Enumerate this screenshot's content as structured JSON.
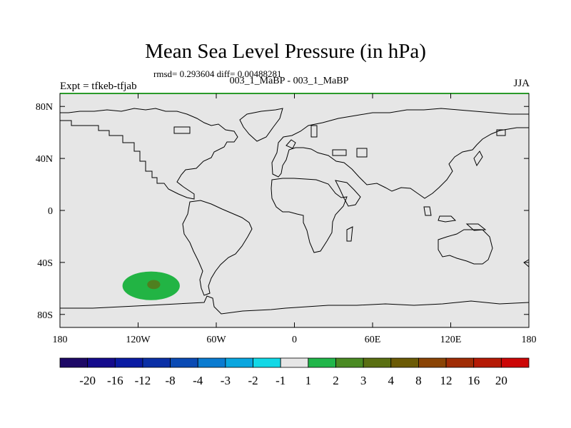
{
  "chart_data": {
    "type": "heatmap",
    "title": "Mean Sea Level Pressure (in hPa)",
    "stats": "rmsd= 0.293604 diff= 0.00488281",
    "expt": "Expt = tfkeb-tfjab",
    "experiments": "003_1_MaBP - 003_1_MaBP",
    "season": "JJA",
    "projection": "cylindrical equidistant",
    "xlim": [
      -180,
      180
    ],
    "ylim": [
      -90,
      90
    ],
    "x_ticks": [
      {
        "value": -180,
        "label": "180"
      },
      {
        "value": -120,
        "label": "120W"
      },
      {
        "value": -60,
        "label": "60W"
      },
      {
        "value": 0,
        "label": "0"
      },
      {
        "value": 60,
        "label": "60E"
      },
      {
        "value": 120,
        "label": "120E"
      },
      {
        "value": 180,
        "label": "180"
      }
    ],
    "y_ticks": [
      {
        "value": 80,
        "label": "80N"
      },
      {
        "value": 40,
        "label": "40N"
      },
      {
        "value": 0,
        "label": "0"
      },
      {
        "value": -40,
        "label": "40S"
      },
      {
        "value": -80,
        "label": "80S"
      }
    ],
    "background_value_range": "-1 to 1",
    "anomalies": [
      {
        "center_lon": -110,
        "center_lat": -58,
        "lon_radius": 22,
        "lat_radius": 11,
        "min_value": 1,
        "max_value": 2,
        "color": "#22b444"
      },
      {
        "center_lon": -108,
        "center_lat": -57,
        "lon_radius": 5,
        "lat_radius": 3.5,
        "min_value": 3,
        "max_value": 4,
        "color": "#4f7f1f"
      }
    ],
    "colorbar": {
      "labels": [
        "-20",
        "-16",
        "-12",
        "-8",
        "-4",
        "-3",
        "-2",
        "-1",
        "1",
        "2",
        "3",
        "4",
        "8",
        "12",
        "16",
        "20"
      ],
      "colors": [
        "#1d0866",
        "#140b8c",
        "#0a1ba3",
        "#0a2fa6",
        "#0a4ab4",
        "#0a7bd0",
        "#0aa6df",
        "#12d8e6",
        "#e6e6e6",
        "#21b64a",
        "#4a8a23",
        "#5a6f12",
        "#6b5a05",
        "#8a4405",
        "#a02c05",
        "#b51a05",
        "#cc0606"
      ]
    },
    "colors": {
      "ocean_fill": "#e6e6e6",
      "coastline": "#000000",
      "top_border": "#2a9a2a"
    }
  }
}
